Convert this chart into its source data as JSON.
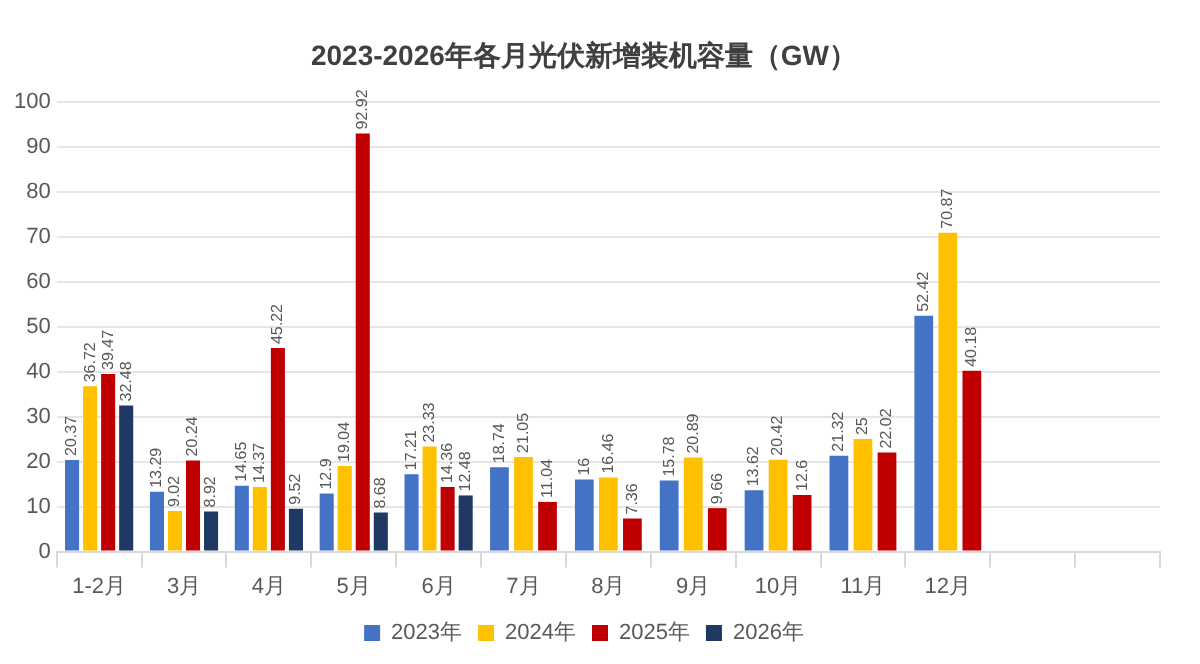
{
  "chart_data": {
    "type": "bar",
    "title": "2023-2026年各月光伏新增装机容量（GW）",
    "categories": [
      "1-2月",
      "3月",
      "4月",
      "5月",
      "6月",
      "7月",
      "8月",
      "9月",
      "10月",
      "11月",
      "12月",
      null,
      null
    ],
    "series": [
      {
        "name": "2023年",
        "color": "#4472c4",
        "values": [
          20.37,
          13.29,
          14.65,
          12.9,
          17.21,
          18.74,
          16,
          15.78,
          13.62,
          21.32,
          52.42,
          null,
          null
        ]
      },
      {
        "name": "2024年",
        "color": "#ffc000",
        "values": [
          36.72,
          9.02,
          14.37,
          19.04,
          23.33,
          21.05,
          16.46,
          20.89,
          20.42,
          25,
          70.87,
          null,
          null
        ]
      },
      {
        "name": "2025年",
        "color": "#c00000",
        "values": [
          39.47,
          20.24,
          45.22,
          92.92,
          14.36,
          11.04,
          7.36,
          9.66,
          12.6,
          22.02,
          40.18,
          null,
          null
        ]
      },
      {
        "name": "2026年",
        "color": "#203864",
        "values": [
          32.48,
          8.92,
          9.52,
          8.68,
          12.48,
          null,
          null,
          null,
          null,
          null,
          null,
          null,
          null
        ]
      }
    ],
    "ylim": [
      0,
      100
    ],
    "yticks": [
      0,
      10,
      20,
      30,
      40,
      50,
      60,
      70,
      80,
      90,
      100
    ],
    "grid": "y",
    "legend": "bottom",
    "data_labels": true
  }
}
